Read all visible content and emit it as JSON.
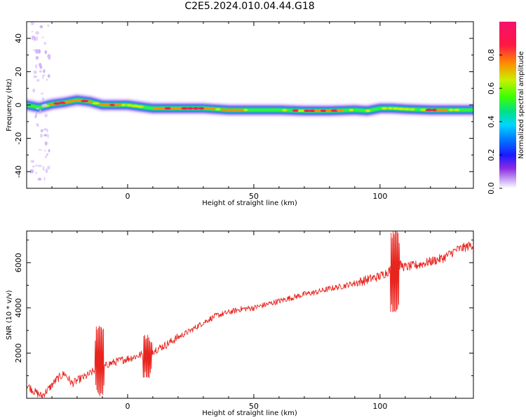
{
  "title": "C2E5.2024.010.04.44.G18",
  "colors": {
    "snr_line": "#e8241e",
    "background": "#ffffff",
    "colormap": [
      "#ffffff",
      "#c9a8f5",
      "#8a2be2",
      "#1a1aff",
      "#00d5ff",
      "#00e08a",
      "#3dff00",
      "#c8f000",
      "#ff8c00",
      "#ff1744",
      "#f5126b"
    ]
  },
  "chart_data": [
    {
      "type": "heatmap",
      "title": "C2E5.2024.010.04.44.G18",
      "xlabel": "Height of straight line (km)",
      "ylabel": "Frequency (Hz)",
      "xlim": [
        -40,
        137
      ],
      "ylim": [
        -50,
        50
      ],
      "xticks": [
        0,
        50,
        100
      ],
      "yticks": [
        -40,
        -20,
        0,
        20,
        40
      ],
      "colorbar": {
        "label": "Normalized spectral amplitude",
        "range": [
          0.0,
          1.0
        ],
        "ticks": [
          "0.0",
          "0.2",
          "0.4",
          "0.6",
          "0.8"
        ]
      },
      "ridge": {
        "height_km": [
          -40,
          -35,
          -30,
          -25,
          -20,
          -15,
          -10,
          -5,
          0,
          5,
          10,
          15,
          20,
          30,
          40,
          50,
          60,
          70,
          80,
          90,
          95,
          100,
          105,
          110,
          120,
          130,
          137
        ],
        "frequency_hz": [
          0,
          -1.5,
          0.5,
          1.5,
          3,
          2,
          0,
          0,
          0,
          -1,
          -2,
          -2,
          -2,
          -2,
          -3,
          -3,
          -3,
          -3.5,
          -3.5,
          -3,
          -3.5,
          -2,
          -2,
          -2.5,
          -3,
          -3,
          -3
        ],
        "amplitude": [
          0.7,
          0.5,
          0.8,
          0.85,
          0.9,
          0.75,
          0.85,
          0.9,
          0.8,
          0.75,
          0.7,
          0.95,
          0.95,
          0.95,
          0.9,
          0.6,
          0.55,
          0.9,
          0.95,
          0.6,
          0.7,
          0.55,
          0.85,
          0.6,
          0.9,
          0.7,
          0.5
        ]
      }
    },
    {
      "type": "line",
      "title": "",
      "xlabel": "Height of straight line (km)",
      "ylabel": "SNR (10 * v/v)",
      "xlim": [
        -40,
        137
      ],
      "ylim": [
        0,
        7400
      ],
      "xticks": [
        0,
        50,
        100
      ],
      "yticks": [
        2000,
        4000,
        6000
      ],
      "series": [
        {
          "x": [
            -40,
            -37,
            -34,
            -31,
            -28,
            -25,
            -22,
            -19,
            -16,
            -13,
            -11,
            -8,
            -5,
            -2,
            0,
            3,
            6,
            9,
            12,
            15,
            20,
            25,
            30,
            35,
            40,
            45,
            50,
            55,
            60,
            65,
            70,
            75,
            80,
            85,
            90,
            95,
            100,
            103,
            106,
            108,
            110,
            115,
            120,
            125,
            130,
            137
          ],
          "y": [
            600,
            300,
            100,
            450,
            850,
            1100,
            650,
            850,
            1000,
            1250,
            1200,
            1500,
            1600,
            1700,
            1750,
            1850,
            1950,
            2050,
            2200,
            2350,
            2700,
            3000,
            3350,
            3650,
            3800,
            3950,
            4000,
            4150,
            4300,
            4450,
            4600,
            4700,
            4850,
            4950,
            5100,
            5250,
            5400,
            5600,
            5800,
            5900,
            5800,
            5900,
            6050,
            6200,
            6550,
            6800
          ],
          "spikes": [
            {
              "x": -11,
              "ymin": 100,
              "ymax": 3200
            },
            {
              "x": 8,
              "ymin": 900,
              "ymax": 2800
            },
            {
              "x": 106,
              "ymin": 3800,
              "ymax": 7400
            }
          ]
        }
      ]
    }
  ]
}
